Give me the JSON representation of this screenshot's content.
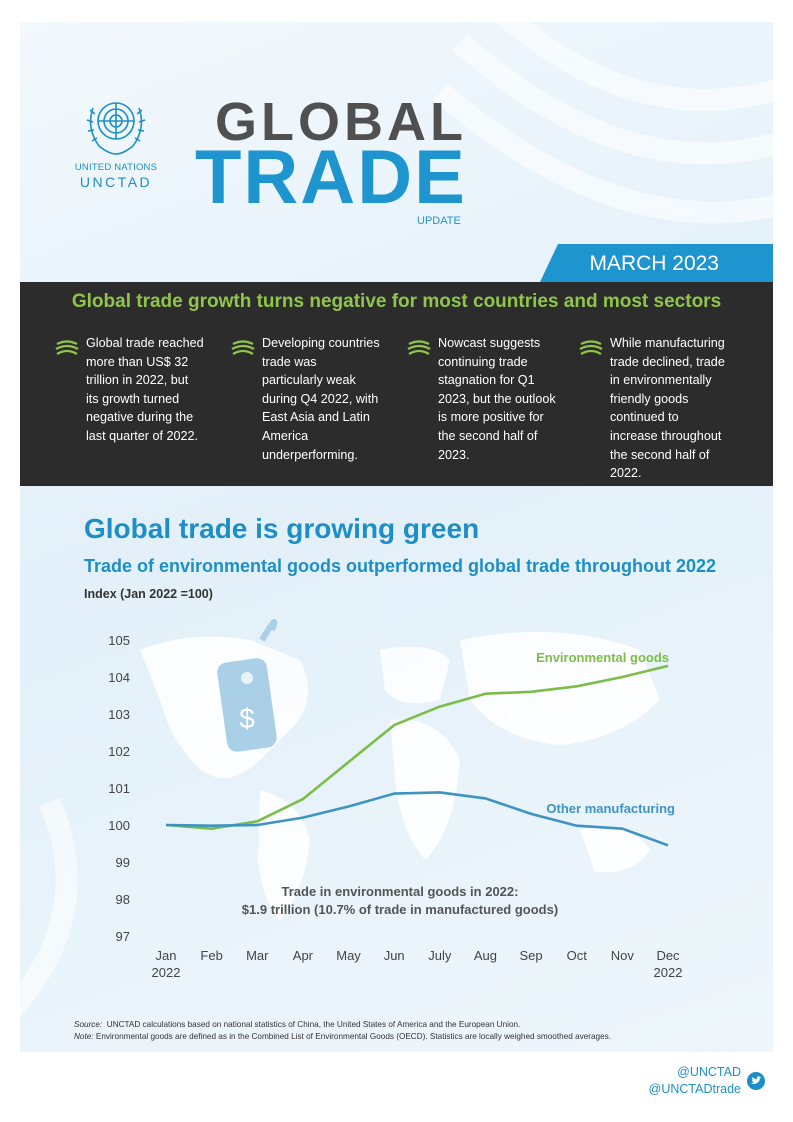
{
  "header": {
    "org_line1": "UNITED NATIONS",
    "org_line2": "UNCTAD",
    "title_line1": "GLOBAL",
    "title_line2": "TRADE",
    "title_line3": "UPDATE",
    "date": "MARCH 2023"
  },
  "summary": {
    "headline": "Global trade growth turns negative for most countries and most sectors",
    "bullets": [
      {
        "icon": "globe-swirl-icon",
        "text": "Global trade reached more than US$ 32 trillion in 2022, but its growth turned negative during the last quarter of 2022."
      },
      {
        "icon": "globe-swirl-icon",
        "text": "Developing countries trade was particularly weak during Q4 2022, with East Asia and Latin America underperforming."
      },
      {
        "icon": "globe-swirl-icon",
        "text": "Nowcast suggests continuing trade stagnation for Q1 2023, but the outlook is more positive for the second half of 2023."
      },
      {
        "icon": "globe-swirl-icon",
        "text": "While manufacturing trade declined, trade in environmentally friendly goods continued to increase throughout the second half of 2022."
      }
    ]
  },
  "chart_data": {
    "type": "line",
    "title": "Global trade is growing green",
    "subtitle": "Trade of environmental goods outperformed global trade throughout 2022",
    "ylabel": "Index (Jan 2022 =100)",
    "xlabel": "",
    "categories": [
      "Jan",
      "Feb",
      "Mar",
      "Apr",
      "May",
      "Jun",
      "July",
      "Aug",
      "Sep",
      "Oct",
      "Nov",
      "Dec"
    ],
    "category_sublabels": [
      "2022",
      "",
      "",
      "",
      "",
      "",
      "",
      "",
      "",
      "",
      "",
      "2022"
    ],
    "ylim": [
      97,
      105
    ],
    "yticks": [
      97,
      98,
      99,
      100,
      101,
      102,
      103,
      104,
      105
    ],
    "series": [
      {
        "name": "Environmental goods",
        "color": "#7cbd4a",
        "values": [
          100.0,
          99.9,
          100.1,
          100.7,
          101.7,
          102.7,
          103.2,
          103.55,
          103.6,
          103.75,
          104.0,
          104.3
        ]
      },
      {
        "name": "Other manufacturing",
        "color": "#3f93c2",
        "values": [
          100.0,
          99.98,
          100.0,
          100.2,
          100.5,
          100.85,
          100.88,
          100.72,
          100.3,
          99.98,
          99.9,
          99.45
        ]
      }
    ],
    "annotation_line1": "Trade in environmental goods in 2022:",
    "annotation_line2": "$1.9 trillion (10.7% of trade in manufactured goods)",
    "price_tag_symbol": "$",
    "grid": false
  },
  "footer": {
    "source": "UNCTAD calculations based on national statistics of China, the United States of America and the European Union.",
    "source_label": "Source:",
    "note_label": "Note:",
    "note": "Environmental goods are defined as in the Combined List of Environmental Goods (OECD).  Statistics are locally weighed smoothed averages.",
    "handle1": "@UNCTAD",
    "handle2": "@UNCTADtrade"
  },
  "colors": {
    "brand_blue": "#1e95cf",
    "headline_green": "#8fc54b",
    "dark_band": "#2c2c2c"
  }
}
